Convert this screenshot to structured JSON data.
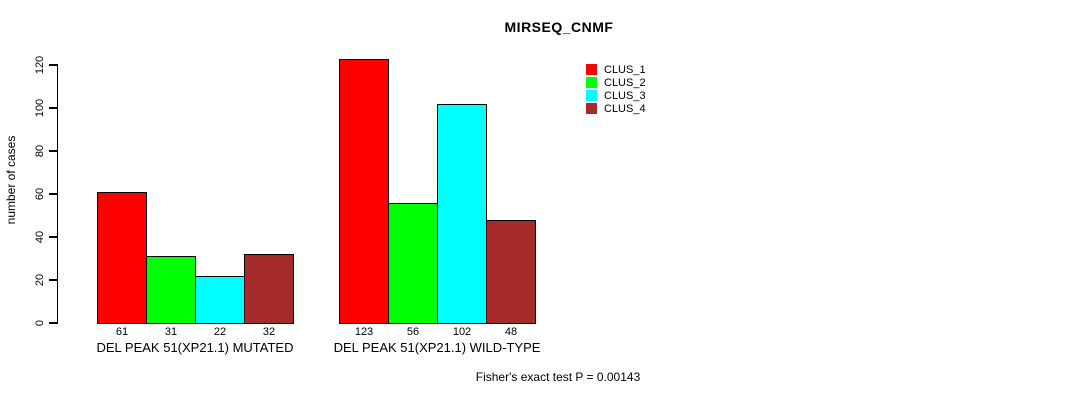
{
  "chart_data": {
    "type": "bar",
    "title": "MIRSEQ_CNMF",
    "ylabel": "number of cases",
    "ylim": [
      0,
      120
    ],
    "yticks": [
      0,
      20,
      40,
      60,
      80,
      100,
      120
    ],
    "grid": false,
    "legend_position": "top-right",
    "legend_labels": [
      "CLUS_1",
      "CLUS_2",
      "CLUS_3",
      "CLUS_4"
    ],
    "series_colors": [
      "#FF0000",
      "#00FF00",
      "#00FFFF",
      "#A52A2A"
    ],
    "groups": [
      {
        "label": "DEL PEAK 51(XP21.1) MUTATED",
        "values": [
          61,
          31,
          22,
          32
        ]
      },
      {
        "label": "DEL PEAK 51(XP21.1) WILD-TYPE",
        "values": [
          123,
          56,
          102,
          48
        ]
      }
    ],
    "annotation": "Fisher's exact test P = 0.00143"
  }
}
